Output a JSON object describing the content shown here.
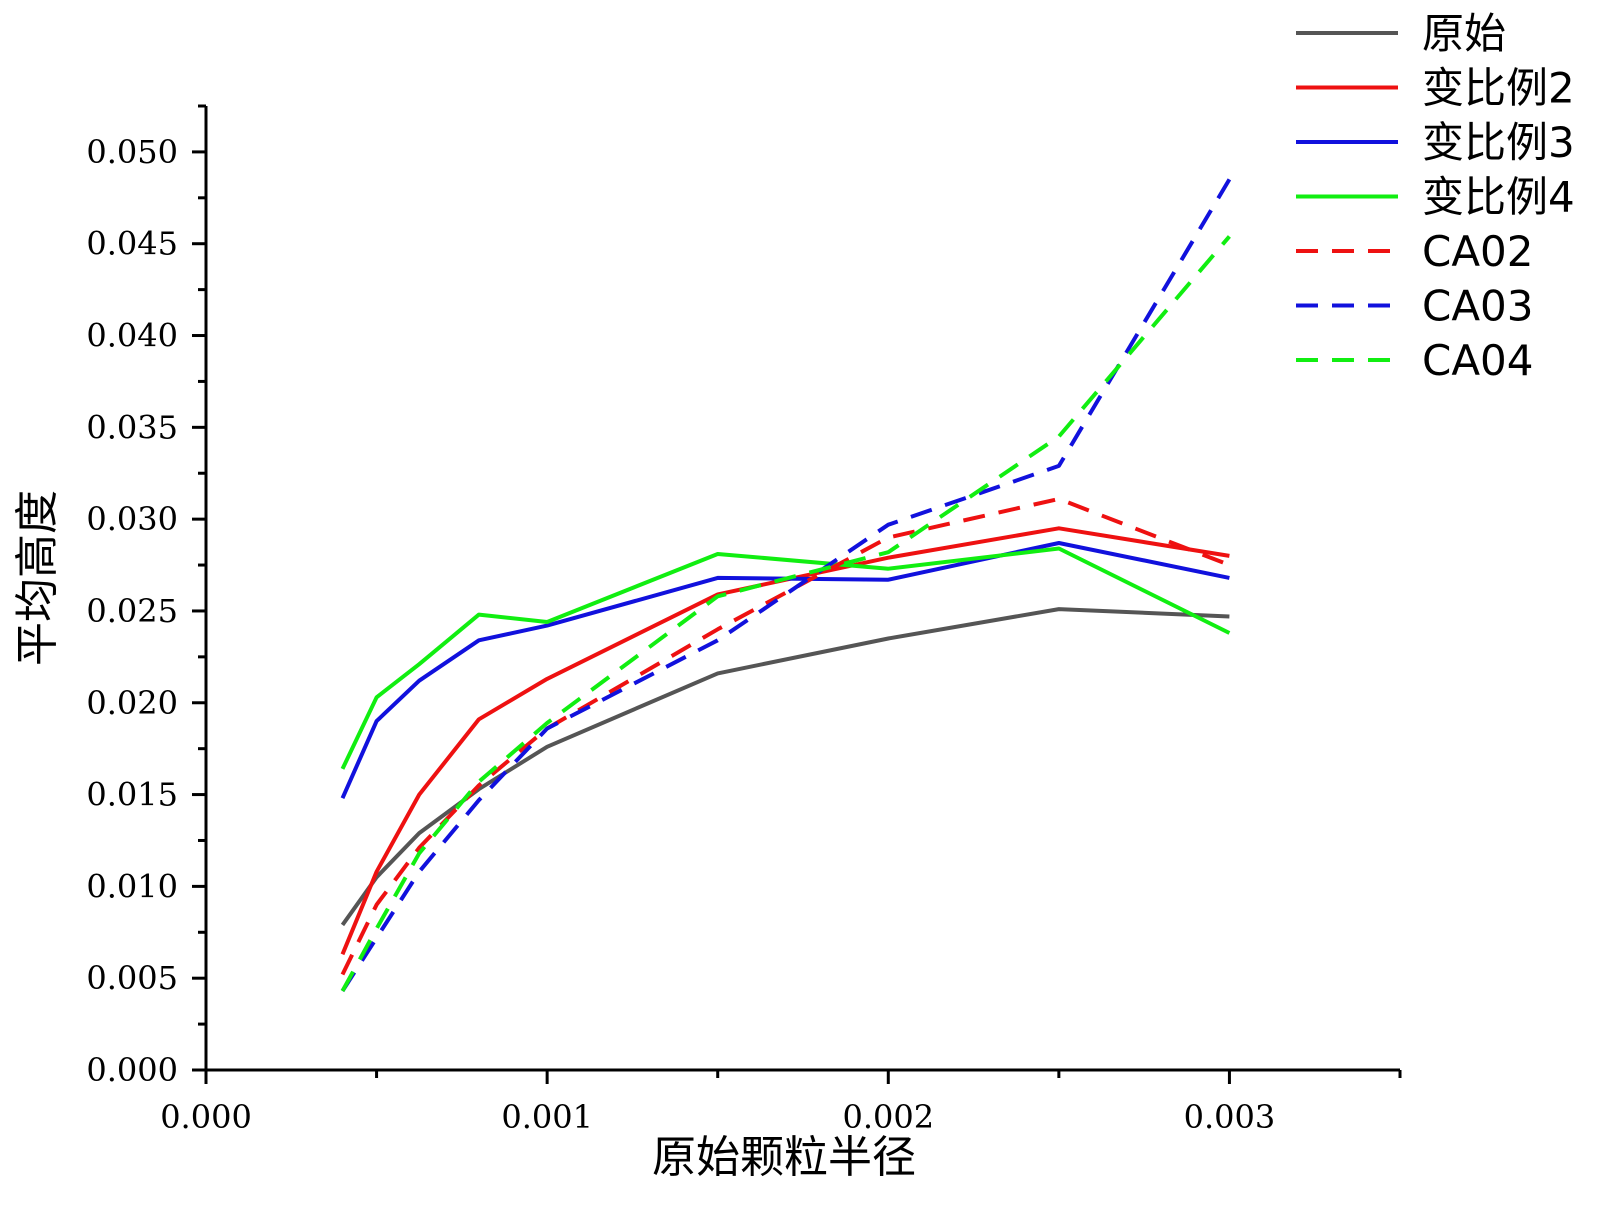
{
  "chart_data": {
    "type": "line",
    "title": "",
    "xlabel": "原始颗粒半径",
    "ylabel": "平均高度",
    "xlim": [
      0,
      0.0035
    ],
    "ylim": [
      0,
      0.0525
    ],
    "x_ticks": [
      0.0,
      0.001,
      0.002,
      0.003
    ],
    "x_tick_labels": [
      "0.000",
      "0.001",
      "0.002",
      "0.003"
    ],
    "y_ticks": [
      0.0,
      0.005,
      0.01,
      0.015,
      0.02,
      0.025,
      0.03,
      0.035,
      0.04,
      0.045,
      0.05
    ],
    "y_tick_labels": [
      "0.000",
      "0.005",
      "0.010",
      "0.015",
      "0.020",
      "0.025",
      "0.030",
      "0.035",
      "0.040",
      "0.045",
      "0.050"
    ],
    "grid": false,
    "legend_position": "top-right",
    "series": [
      {
        "name": "原始",
        "color": "#555555",
        "style": "solid",
        "x": [
          0.0004,
          0.0005,
          0.000625,
          0.0008,
          0.001,
          0.0015,
          0.002,
          0.0025,
          0.003
        ],
        "y": [
          0.0079,
          0.0105,
          0.0129,
          0.0153,
          0.0176,
          0.0216,
          0.0235,
          0.0251,
          0.0247
        ]
      },
      {
        "name": "变比例2",
        "color": "#ee1111",
        "style": "solid",
        "x": [
          0.0004,
          0.0005,
          0.000625,
          0.0008,
          0.001,
          0.0015,
          0.002,
          0.0025,
          0.003
        ],
        "y": [
          0.0063,
          0.0108,
          0.015,
          0.0191,
          0.0213,
          0.0259,
          0.0279,
          0.0295,
          0.028
        ]
      },
      {
        "name": "变比例3",
        "color": "#1111dd",
        "style": "solid",
        "x": [
          0.0004,
          0.0005,
          0.000625,
          0.0008,
          0.001,
          0.0015,
          0.002,
          0.0025,
          0.003
        ],
        "y": [
          0.0148,
          0.019,
          0.0212,
          0.0234,
          0.0242,
          0.0268,
          0.0267,
          0.0287,
          0.0268
        ]
      },
      {
        "name": "变比例4",
        "color": "#11ee11",
        "style": "solid",
        "x": [
          0.0004,
          0.0005,
          0.000625,
          0.0008,
          0.001,
          0.0015,
          0.002,
          0.0025,
          0.003
        ],
        "y": [
          0.0164,
          0.0203,
          0.0221,
          0.0248,
          0.0244,
          0.0281,
          0.0273,
          0.0284,
          0.0238
        ]
      },
      {
        "name": "CA02",
        "color": "#ee1111",
        "style": "dashed",
        "x": [
          0.0004,
          0.0005,
          0.000625,
          0.0008,
          0.001,
          0.0015,
          0.002,
          0.0025,
          0.003
        ],
        "y": [
          0.0052,
          0.009,
          0.0121,
          0.0155,
          0.0186,
          0.024,
          0.029,
          0.0311,
          0.0275
        ]
      },
      {
        "name": "CA03",
        "color": "#1111dd",
        "style": "dashed",
        "x": [
          0.0004,
          0.0005,
          0.000625,
          0.0008,
          0.001,
          0.0015,
          0.002,
          0.0025,
          0.003
        ],
        "y": [
          0.0043,
          0.0072,
          0.0108,
          0.0147,
          0.0186,
          0.0234,
          0.0297,
          0.0329,
          0.0485
        ]
      },
      {
        "name": "CA04",
        "color": "#11ee11",
        "style": "dashed",
        "x": [
          0.0004,
          0.0005,
          0.000625,
          0.0008,
          0.001,
          0.0015,
          0.002,
          0.0025,
          0.003
        ],
        "y": [
          0.0043,
          0.0077,
          0.0118,
          0.0157,
          0.0189,
          0.0258,
          0.0282,
          0.0345,
          0.0454
        ]
      }
    ]
  }
}
